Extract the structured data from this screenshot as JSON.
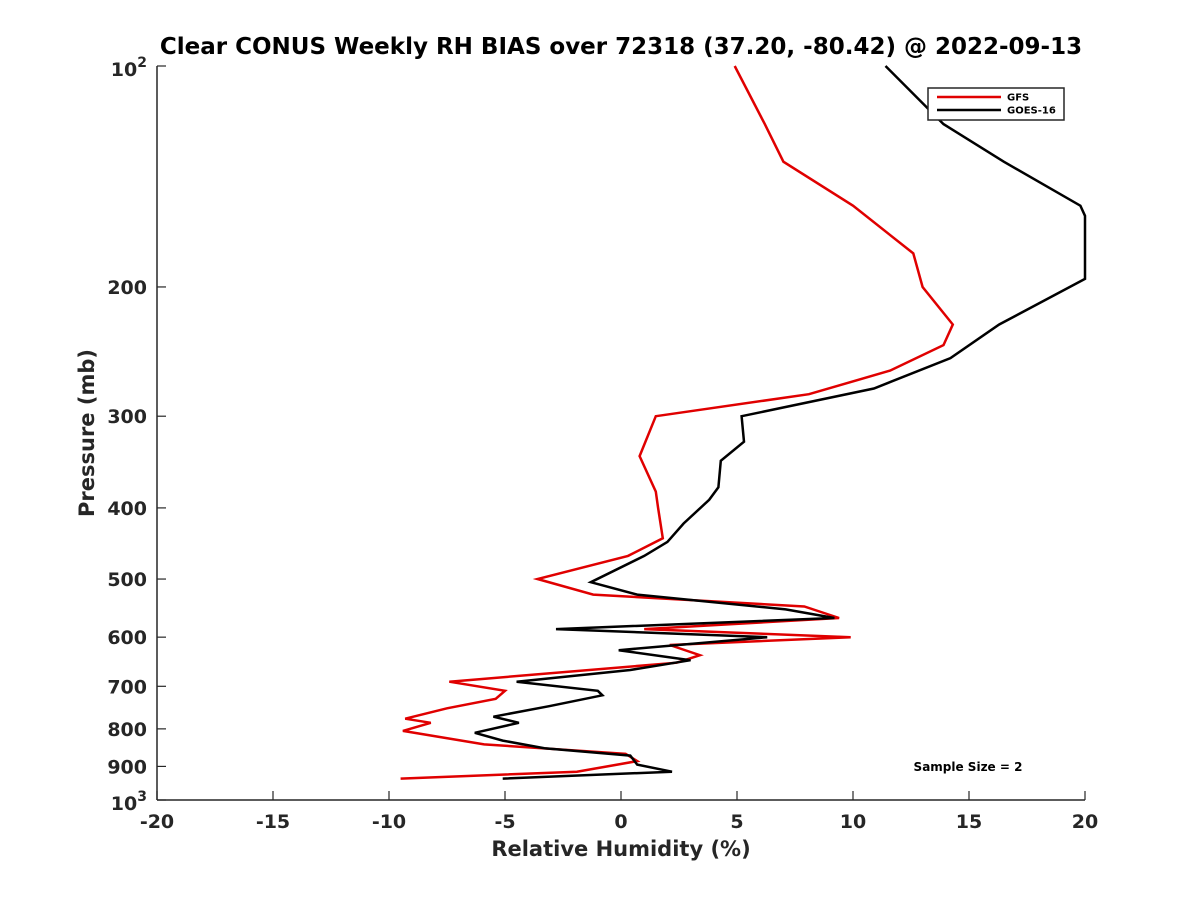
{
  "chart_data": {
    "type": "line",
    "title": "Clear CONUS Weekly RH BIAS over 72318 (37.20, -80.42) @ 2022-09-13",
    "xlabel": "Relative Humidity (%)",
    "ylabel": "Pressure (mb)",
    "xlim": [
      -20,
      20
    ],
    "ylim": [
      100,
      1000
    ],
    "y_scale": "log",
    "y_reversed": true,
    "x_ticks": [
      -20,
      -15,
      -10,
      -5,
      0,
      5,
      10,
      15,
      20
    ],
    "x_tick_labels": [
      "-20",
      "-15",
      "-10",
      "-5",
      "0",
      "5",
      "10",
      "15",
      "20"
    ],
    "y_ticks": [
      100,
      200,
      300,
      400,
      500,
      600,
      700,
      800,
      900,
      1000
    ],
    "y_tick_labels": [
      {
        "base": "10",
        "exp": "2"
      },
      {
        "text": "200"
      },
      {
        "text": "300"
      },
      {
        "text": "400"
      },
      {
        "text": "500"
      },
      {
        "text": "600"
      },
      {
        "text": "700"
      },
      {
        "text": "800"
      },
      {
        "text": "900"
      },
      {
        "base": "10",
        "exp": "3"
      }
    ],
    "grid": false,
    "legend_position": "top-right",
    "annotation": "Sample Size = 2",
    "series": [
      {
        "name": "GFS",
        "color": "#e00000",
        "points": [
          [
            4.9,
            100
          ],
          [
            6.2,
            120
          ],
          [
            7.0,
            135
          ],
          [
            10.0,
            155
          ],
          [
            12.6,
            180
          ],
          [
            13.0,
            200
          ],
          [
            14.3,
            225
          ],
          [
            13.9,
            240
          ],
          [
            11.6,
            260
          ],
          [
            8.1,
            280
          ],
          [
            1.5,
            300
          ],
          [
            0.8,
            340
          ],
          [
            1.5,
            380
          ],
          [
            1.6,
            400
          ],
          [
            1.8,
            440
          ],
          [
            0.3,
            465
          ],
          [
            -3.6,
            500
          ],
          [
            -1.2,
            525
          ],
          [
            7.9,
            545
          ],
          [
            9.4,
            565
          ],
          [
            1.0,
            585
          ],
          [
            9.9,
            600
          ],
          [
            2.1,
            615
          ],
          [
            3.4,
            635
          ],
          [
            2.4,
            650
          ],
          [
            -7.4,
            690
          ],
          [
            -5.0,
            710
          ],
          [
            -5.4,
            728
          ],
          [
            -7.5,
            750
          ],
          [
            -9.3,
            775
          ],
          [
            -8.2,
            785
          ],
          [
            -9.4,
            805
          ],
          [
            -5.9,
            840
          ],
          [
            0.2,
            865
          ],
          [
            0.7,
            885
          ],
          [
            -1.9,
            915
          ],
          [
            -9.5,
            935
          ]
        ]
      },
      {
        "name": "GOES-16",
        "color": "#000000",
        "points": [
          [
            11.4,
            100
          ],
          [
            13.9,
            120
          ],
          [
            16.5,
            135
          ],
          [
            19.8,
            155
          ],
          [
            20.0,
            160
          ],
          [
            20.0,
            195
          ],
          [
            16.3,
            225
          ],
          [
            14.2,
            250
          ],
          [
            10.9,
            275
          ],
          [
            5.2,
            300
          ],
          [
            5.3,
            325
          ],
          [
            4.3,
            345
          ],
          [
            4.2,
            375
          ],
          [
            3.8,
            390
          ],
          [
            2.7,
            420
          ],
          [
            2.0,
            445
          ],
          [
            1.0,
            465
          ],
          [
            -1.3,
            505
          ],
          [
            0.7,
            525
          ],
          [
            7.1,
            550
          ],
          [
            9.2,
            565
          ],
          [
            -2.8,
            585
          ],
          [
            6.3,
            600
          ],
          [
            -0.1,
            625
          ],
          [
            3.0,
            645
          ],
          [
            0.4,
            665
          ],
          [
            -4.5,
            690
          ],
          [
            -1.0,
            710
          ],
          [
            -0.8,
            720
          ],
          [
            -3.1,
            745
          ],
          [
            -5.5,
            770
          ],
          [
            -4.4,
            785
          ],
          [
            -6.3,
            810
          ],
          [
            -5.1,
            830
          ],
          [
            -3.3,
            850
          ],
          [
            0.4,
            870
          ],
          [
            0.7,
            895
          ],
          [
            2.2,
            915
          ],
          [
            -5.1,
            935
          ]
        ]
      }
    ]
  }
}
